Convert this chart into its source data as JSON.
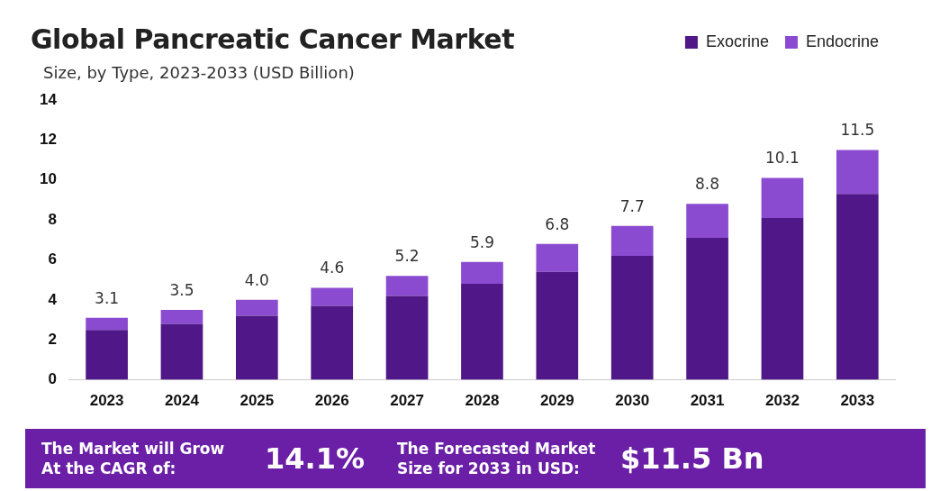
{
  "chart_data": {
    "type": "bar",
    "title": "Global Pancreatic Cancer Market",
    "subtitle": "Size, by Type, 2023-2033 (USD Billion)",
    "categories": [
      "2023",
      "2024",
      "2025",
      "2026",
      "2027",
      "2028",
      "2029",
      "2030",
      "2031",
      "2032",
      "2033"
    ],
    "series": [
      {
        "name": "Exocrine",
        "color": "#4f1787",
        "values": [
          2.5,
          2.8,
          3.2,
          3.7,
          4.2,
          4.8,
          5.4,
          6.2,
          7.1,
          8.1,
          9.3
        ]
      },
      {
        "name": "Endocrine",
        "color": "#8b4bd0",
        "values": [
          0.6,
          0.7,
          0.8,
          0.9,
          1.0,
          1.1,
          1.4,
          1.5,
          1.7,
          2.0,
          2.2
        ]
      }
    ],
    "stacked": true,
    "totals": [
      "3.1",
      "3.5",
      "4.0",
      "4.6",
      "5.2",
      "5.9",
      "6.8",
      "7.7",
      "8.8",
      "10.1",
      "11.5"
    ],
    "ylim": [
      0,
      14
    ],
    "yticks": [
      0,
      2,
      4,
      6,
      8,
      10,
      12,
      14
    ],
    "grid": false,
    "legend": "top right",
    "annotations": [
      "The Market will Grow At the CAGR of:",
      "14.1%",
      "The Forecasted Market Size for 2033 in USD:",
      "$11.5 Bn"
    ]
  }
}
